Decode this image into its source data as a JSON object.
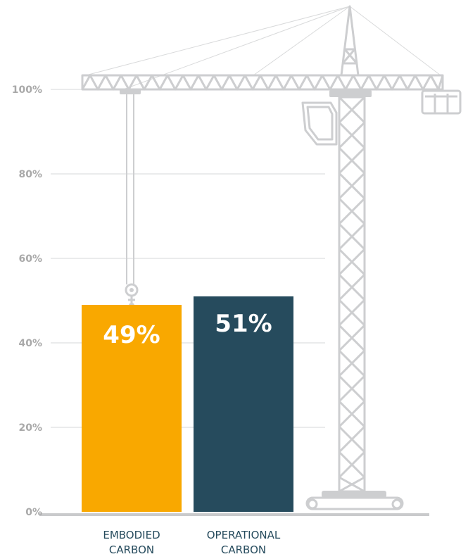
{
  "chart_data": {
    "type": "bar",
    "categories": [
      [
        "EMBODIED",
        "CARBON"
      ],
      [
        "OPERATIONAL",
        "CARBON"
      ]
    ],
    "values": [
      49,
      51
    ],
    "data_labels": [
      "49%",
      "51%"
    ],
    "colors": [
      "#f9a800",
      "#264b5d"
    ],
    "yticks": [
      "0%",
      "20%",
      "40%",
      "60%",
      "80%",
      "100%"
    ],
    "ylim": [
      0,
      100
    ],
    "grid": true,
    "decoration": "tower-crane-icon"
  }
}
